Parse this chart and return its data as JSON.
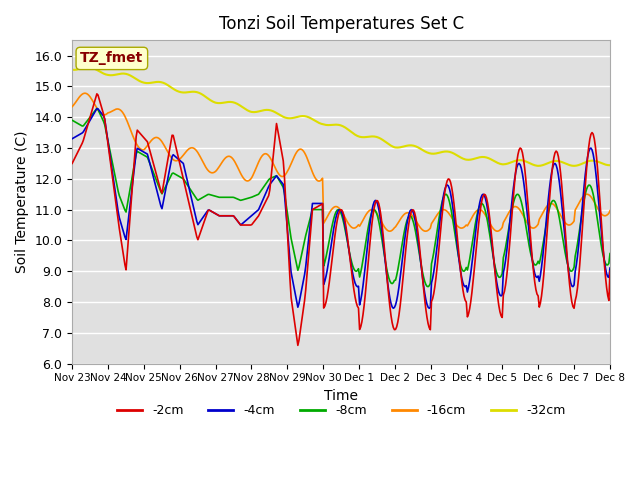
{
  "title": "Tonzi Soil Temperatures Set C",
  "xlabel": "Time",
  "ylabel": "Soil Temperature (C)",
  "ylim": [
    6.0,
    16.5
  ],
  "yticks": [
    6.0,
    7.0,
    8.0,
    9.0,
    10.0,
    11.0,
    12.0,
    13.0,
    14.0,
    15.0,
    16.0
  ],
  "x_tick_labels": [
    "Nov 23",
    "Nov 24",
    "Nov 25",
    "Nov 26",
    "Nov 27",
    "Nov 28",
    "Nov 29",
    "Nov 30",
    "Dec 1",
    "Dec 2",
    "Dec 3",
    "Dec 4",
    "Dec 5",
    "Dec 6",
    "Dec 7",
    "Dec 8"
  ],
  "colors": {
    "-2cm": "#dd0000",
    "-4cm": "#0000cc",
    "-8cm": "#00aa00",
    "-16cm": "#ff8800",
    "-32cm": "#dddd00"
  },
  "annotation_text": "TZ_fmet",
  "annotation_color": "#880000",
  "annotation_bg": "#ffffcc",
  "plot_bg": "#e0e0e0"
}
